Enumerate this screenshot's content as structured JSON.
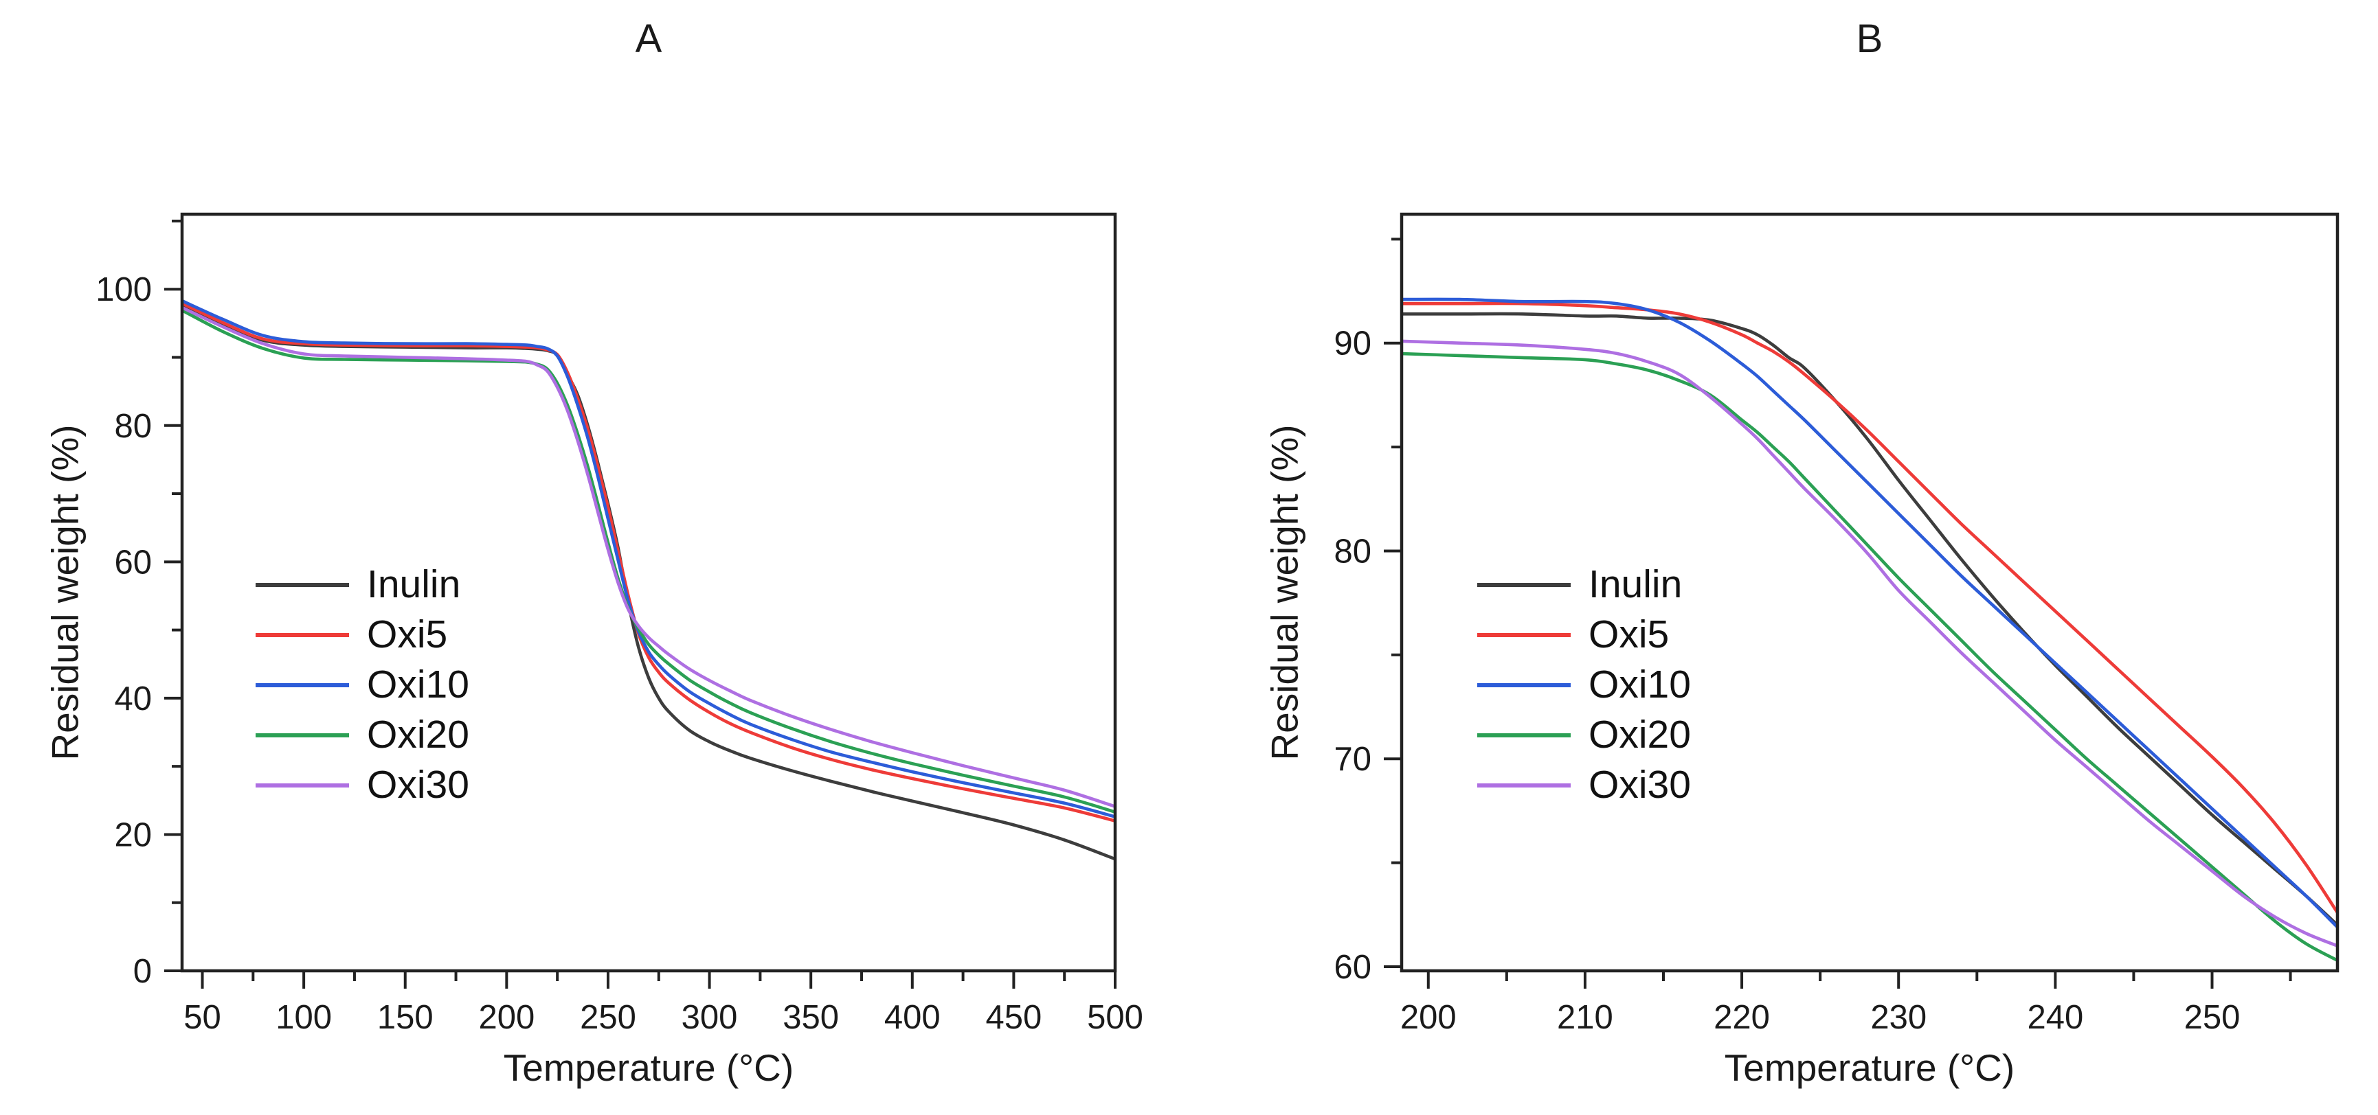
{
  "figure": {
    "background": "#ffffff",
    "frame_color": "#222222",
    "text_color": "#1a1a1a"
  },
  "chart_data": [
    {
      "panel_label": "A",
      "type": "line",
      "xlabel": "Temperature (°C)",
      "ylabel": "Residual weight (%)",
      "xlim": [
        40,
        500
      ],
      "ylim": [
        0,
        111
      ],
      "xticks": [
        50,
        100,
        150,
        200,
        250,
        300,
        350,
        400,
        450,
        500
      ],
      "yticks": [
        0,
        20,
        40,
        60,
        80,
        100
      ],
      "x_minor_ticks": [
        75,
        125,
        175,
        225,
        275,
        325,
        375,
        425,
        475
      ],
      "y_minor_ticks": [
        10,
        30,
        50,
        70,
        90,
        110
      ],
      "grid": false,
      "legend_position": "inside-left",
      "x": [
        40,
        60,
        80,
        100,
        120,
        150,
        180,
        200,
        210,
        215,
        220,
        225,
        230,
        235,
        240,
        245,
        250,
        255,
        260,
        265,
        270,
        275,
        280,
        290,
        300,
        310,
        320,
        340,
        360,
        380,
        400,
        425,
        450,
        475,
        500
      ],
      "series": [
        {
          "name": "Inulin",
          "color": "#3d3d3d",
          "y": [
            97.6,
            94.9,
            92.5,
            91.8,
            91.6,
            91.5,
            91.4,
            91.4,
            91.3,
            91.2,
            91.0,
            90.3,
            87.5,
            84.5,
            80.0,
            74.5,
            68.5,
            62.0,
            54.0,
            47.5,
            43.0,
            40.0,
            38.0,
            35.3,
            33.6,
            32.3,
            31.2,
            29.4,
            27.8,
            26.3,
            24.9,
            23.2,
            21.4,
            19.2,
            16.4
          ]
        },
        {
          "name": "Oxi5",
          "color": "#ee3b38",
          "y": [
            97.9,
            95.1,
            92.7,
            92.0,
            91.8,
            91.7,
            91.7,
            91.6,
            91.5,
            91.4,
            91.1,
            90.4,
            87.8,
            84.0,
            79.5,
            74.0,
            68.0,
            61.5,
            55.0,
            49.5,
            46.0,
            43.8,
            42.2,
            39.8,
            37.9,
            36.3,
            35.0,
            32.8,
            31.0,
            29.5,
            28.2,
            26.7,
            25.3,
            23.9,
            22.0
          ]
        },
        {
          "name": "Oxi10",
          "color": "#2c5cd8",
          "y": [
            98.3,
            95.6,
            93.2,
            92.3,
            92.1,
            92.0,
            92.0,
            91.9,
            91.8,
            91.6,
            91.3,
            90.2,
            87.2,
            83.0,
            78.2,
            72.5,
            66.3,
            60.2,
            54.2,
            49.8,
            46.8,
            44.9,
            43.4,
            41.0,
            39.2,
            37.6,
            36.2,
            34.0,
            32.1,
            30.6,
            29.2,
            27.6,
            26.1,
            24.6,
            22.6
          ]
        },
        {
          "name": "Oxi20",
          "color": "#2ba054",
          "y": [
            96.9,
            93.8,
            91.3,
            89.9,
            89.7,
            89.6,
            89.5,
            89.4,
            89.3,
            89.0,
            88.3,
            86.2,
            83.0,
            78.8,
            74.0,
            68.5,
            62.8,
            57.5,
            53.2,
            50.2,
            47.9,
            46.3,
            45.0,
            42.7,
            40.9,
            39.3,
            37.9,
            35.6,
            33.6,
            31.9,
            30.4,
            28.7,
            27.1,
            25.5,
            23.3
          ]
        },
        {
          "name": "Oxi30",
          "color": "#ae6fe2",
          "y": [
            97.3,
            94.5,
            92.0,
            90.5,
            90.2,
            90.0,
            89.8,
            89.6,
            89.4,
            88.9,
            88.0,
            85.6,
            82.2,
            77.8,
            72.8,
            67.3,
            61.8,
            56.9,
            53.0,
            50.6,
            48.9,
            47.6,
            46.4,
            44.3,
            42.6,
            41.1,
            39.7,
            37.4,
            35.4,
            33.6,
            32.0,
            30.1,
            28.3,
            26.5,
            24.1
          ]
        }
      ]
    },
    {
      "panel_label": "B",
      "type": "line",
      "xlabel": "Temperature (°C)",
      "ylabel": "Residual weight (%)",
      "xlim": [
        198.3,
        258
      ],
      "ylim": [
        59.8,
        96.2
      ],
      "xticks": [
        200,
        210,
        220,
        230,
        240,
        250
      ],
      "yticks": [
        60,
        70,
        80,
        90
      ],
      "x_minor_ticks": [
        205,
        215,
        225,
        235,
        245,
        255
      ],
      "y_minor_ticks": [
        65,
        75,
        85,
        95
      ],
      "grid": false,
      "legend_position": "inside-left",
      "x": [
        198,
        202,
        206,
        210,
        212,
        214,
        216,
        218,
        220,
        221,
        222,
        223,
        224,
        226,
        228,
        230,
        232,
        234,
        236,
        238,
        240,
        242,
        244,
        246,
        248,
        250,
        252,
        254,
        256,
        258
      ],
      "series": [
        {
          "name": "Inulin",
          "color": "#3d3d3d",
          "y": [
            91.4,
            91.4,
            91.4,
            91.3,
            91.3,
            91.2,
            91.2,
            91.1,
            90.7,
            90.4,
            89.9,
            89.3,
            88.8,
            87.2,
            85.4,
            83.4,
            81.5,
            79.6,
            77.8,
            76.1,
            74.5,
            73.0,
            71.5,
            70.1,
            68.7,
            67.3,
            66.0,
            64.7,
            63.4,
            62.0
          ]
        },
        {
          "name": "Oxi5",
          "color": "#ee3b38",
          "y": [
            91.9,
            91.9,
            91.9,
            91.8,
            91.7,
            91.6,
            91.4,
            91.0,
            90.4,
            90.0,
            89.6,
            89.1,
            88.5,
            87.2,
            85.8,
            84.3,
            82.8,
            81.3,
            79.9,
            78.5,
            77.1,
            75.7,
            74.3,
            72.9,
            71.5,
            70.1,
            68.6,
            66.9,
            64.9,
            62.6
          ]
        },
        {
          "name": "Oxi10",
          "color": "#2c5cd8",
          "y": [
            92.1,
            92.1,
            92.0,
            92.0,
            91.9,
            91.6,
            91.0,
            90.1,
            89.0,
            88.4,
            87.7,
            87.0,
            86.3,
            84.8,
            83.3,
            81.8,
            80.3,
            78.8,
            77.4,
            76.0,
            74.6,
            73.2,
            71.8,
            70.4,
            69.0,
            67.6,
            66.2,
            64.8,
            63.4,
            61.9
          ]
        },
        {
          "name": "Oxi20",
          "color": "#2ba054",
          "y": [
            89.5,
            89.4,
            89.3,
            89.2,
            89.0,
            88.7,
            88.2,
            87.5,
            86.3,
            85.7,
            85.0,
            84.3,
            83.5,
            81.9,
            80.3,
            78.7,
            77.2,
            75.7,
            74.2,
            72.8,
            71.4,
            70.0,
            68.7,
            67.4,
            66.1,
            64.8,
            63.5,
            62.2,
            61.1,
            60.3
          ]
        },
        {
          "name": "Oxi30",
          "color": "#ae6fe2",
          "y": [
            90.1,
            90.0,
            89.9,
            89.7,
            89.5,
            89.1,
            88.5,
            87.4,
            86.1,
            85.4,
            84.6,
            83.8,
            83.0,
            81.5,
            79.9,
            78.1,
            76.6,
            75.1,
            73.7,
            72.3,
            70.9,
            69.6,
            68.3,
            67.0,
            65.8,
            64.6,
            63.4,
            62.4,
            61.6,
            61.0
          ]
        }
      ]
    }
  ]
}
